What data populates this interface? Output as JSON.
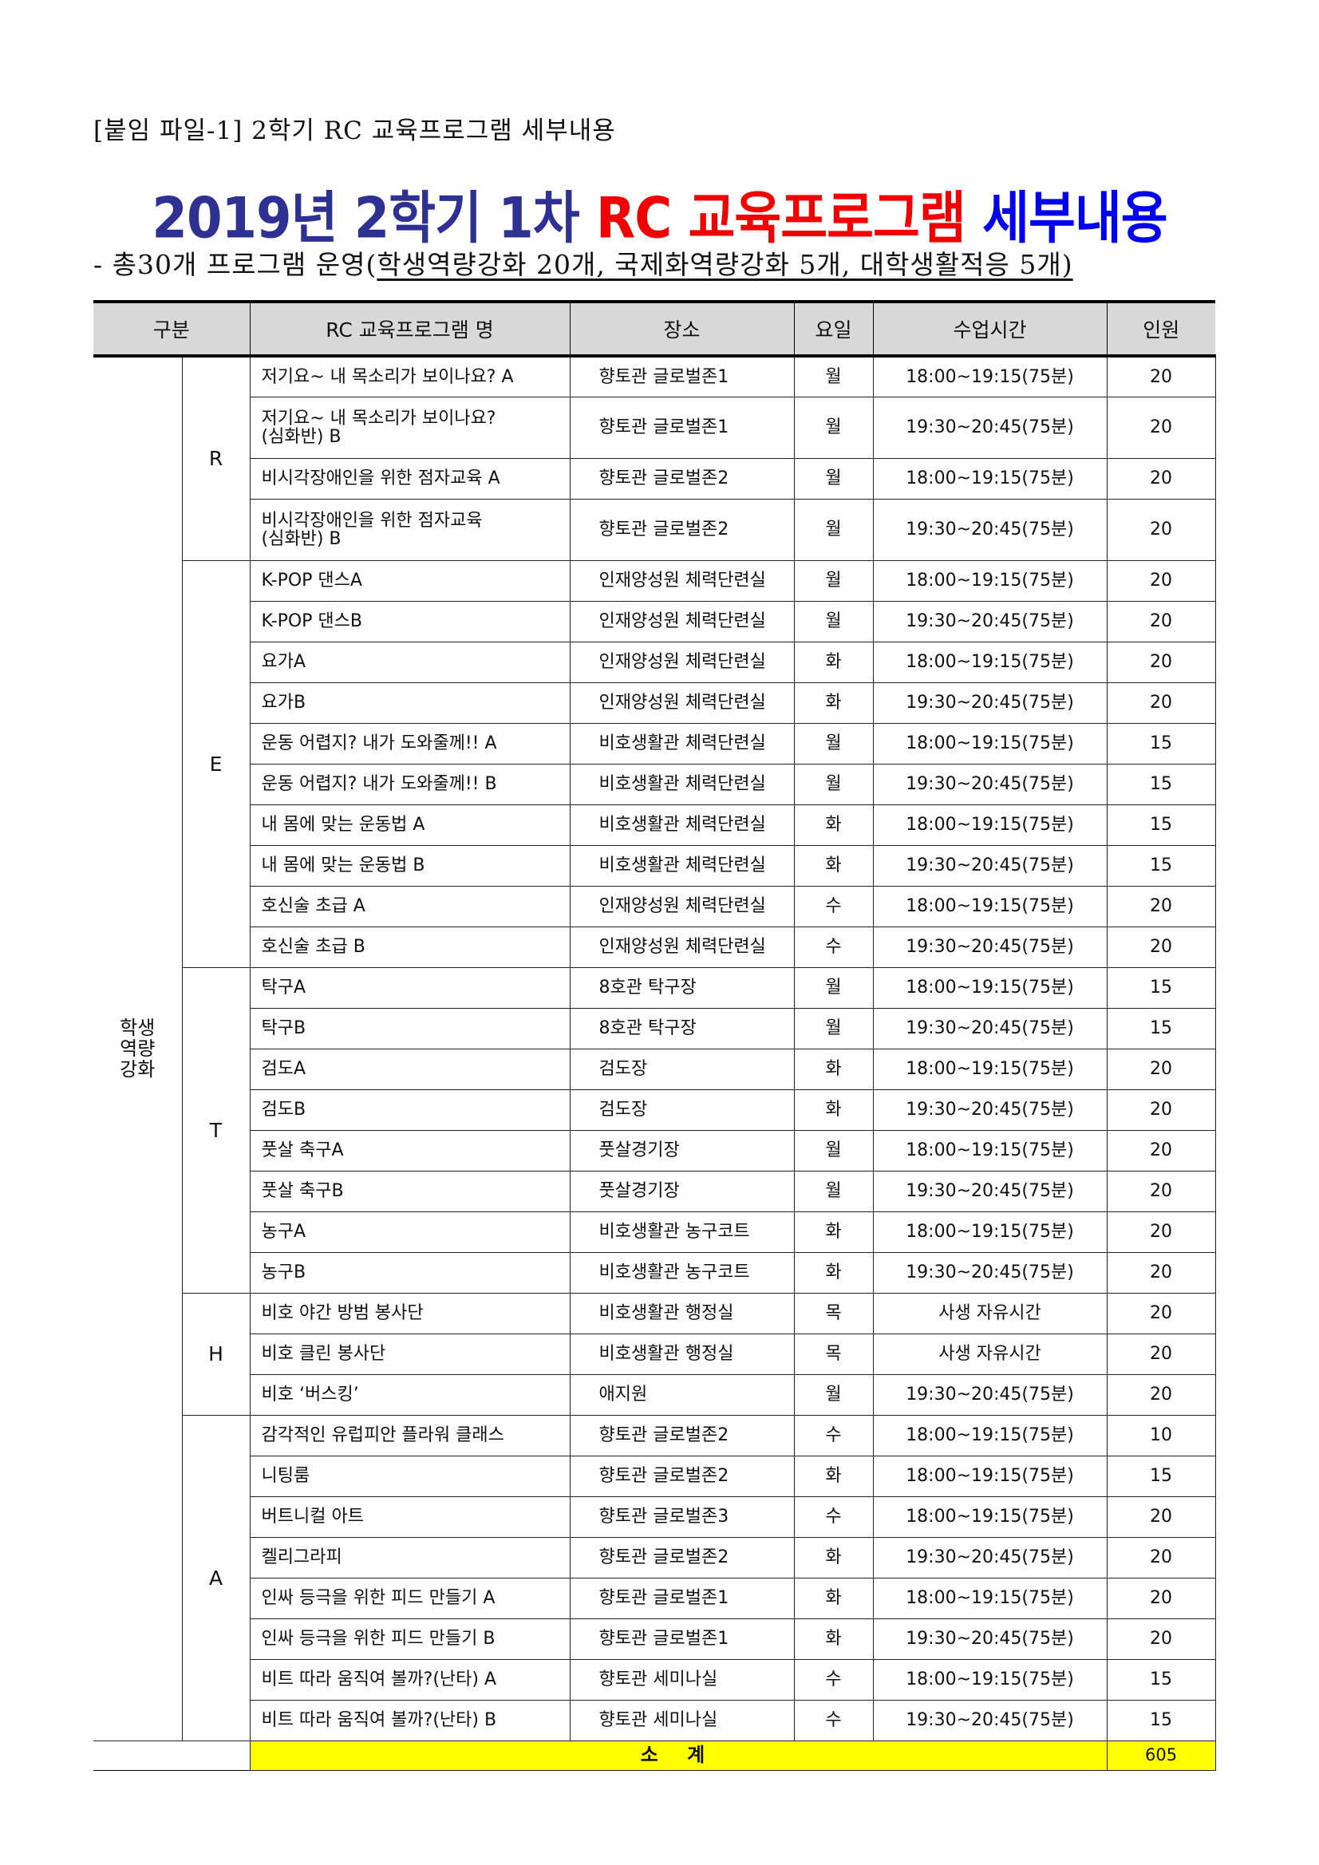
{
  "attachment_label": "[붙임 파일-1] 2학기 RC 교육프로그램 세부내용",
  "title": {
    "part1": "2019년 2학기 1차 ",
    "part2": "RC 교육프로그램 ",
    "part3": "세부내용"
  },
  "subtitle": {
    "prefix": "- 총30개 프로그램 운영(",
    "underlined": "학생역량강화 20개, 국제화역량강화 5개, 대학생활적응 5개)"
  },
  "colors": {
    "title_navy": "#2e3192",
    "title_red": "#f00000",
    "title_blue": "#0000ee",
    "header_bg": "#d9d9d9",
    "subtotal_bg": "#ffff00"
  },
  "table": {
    "headers": [
      "구분",
      "RC 교육프로그램 명",
      "장소",
      "요일",
      "수업시간",
      "인원"
    ],
    "group": "학생역량강화",
    "sections": [
      {
        "category": "R",
        "rows": [
          {
            "name": "저기요~ 내 목소리가 보이나요? A",
            "place": "향토관 글로벌존1",
            "day": "월",
            "time": "18:00~19:15(75분)",
            "count": "20"
          },
          {
            "name": "저기요~ 내 목소리가 보이나요?\n(심화반) B",
            "place": "향토관 글로벌존1",
            "day": "월",
            "time": "19:30~20:45(75분)",
            "count": "20"
          },
          {
            "name": "비시각장애인을 위한 점자교육 A",
            "place": "향토관 글로벌존2",
            "day": "월",
            "time": "18:00~19:15(75분)",
            "count": "20"
          },
          {
            "name": "비시각장애인을 위한 점자교육\n(심화반) B",
            "place": "향토관 글로벌존2",
            "day": "월",
            "time": "19:30~20:45(75분)",
            "count": "20"
          }
        ]
      },
      {
        "category": "E",
        "rows": [
          {
            "name": "K-POP 댄스A",
            "place": "인재양성원 체력단련실",
            "day": "월",
            "time": "18:00~19:15(75분)",
            "count": "20"
          },
          {
            "name": "K-POP 댄스B",
            "place": "인재양성원 체력단련실",
            "day": "월",
            "time": "19:30~20:45(75분)",
            "count": "20"
          },
          {
            "name": "요가A",
            "place": "인재양성원 체력단련실",
            "day": "화",
            "time": "18:00~19:15(75분)",
            "count": "20"
          },
          {
            "name": "요가B",
            "place": "인재양성원 체력단련실",
            "day": "화",
            "time": "19:30~20:45(75분)",
            "count": "20"
          },
          {
            "name": "운동 어렵지? 내가 도와줄께!! A",
            "place": "비호생활관 체력단련실",
            "day": "월",
            "time": "18:00~19:15(75분)",
            "count": "15"
          },
          {
            "name": "운동 어렵지? 내가 도와줄께!! B",
            "place": "비호생활관 체력단련실",
            "day": "월",
            "time": "19:30~20:45(75분)",
            "count": "15"
          },
          {
            "name": "내 몸에 맞는 운동법 A",
            "place": "비호생활관 체력단련실",
            "day": "화",
            "time": "18:00~19:15(75분)",
            "count": "15"
          },
          {
            "name": "내 몸에 맞는 운동법 B",
            "place": "비호생활관 체력단련실",
            "day": "화",
            "time": "19:30~20:45(75분)",
            "count": "15"
          },
          {
            "name": "호신술 초급 A",
            "place": "인재양성원 체력단련실",
            "day": "수",
            "time": "18:00~19:15(75분)",
            "count": "20"
          },
          {
            "name": "호신술 초급 B",
            "place": "인재양성원 체력단련실",
            "day": "수",
            "time": "19:30~20:45(75분)",
            "count": "20"
          }
        ]
      },
      {
        "category": "T",
        "rows": [
          {
            "name": "탁구A",
            "place": "8호관 탁구장",
            "day": "월",
            "time": "18:00~19:15(75분)",
            "count": "15"
          },
          {
            "name": "탁구B",
            "place": "8호관 탁구장",
            "day": "월",
            "time": "19:30~20:45(75분)",
            "count": "15"
          },
          {
            "name": "검도A",
            "place": "검도장",
            "day": "화",
            "time": "18:00~19:15(75분)",
            "count": "20"
          },
          {
            "name": "검도B",
            "place": "검도장",
            "day": "화",
            "time": "19:30~20:45(75분)",
            "count": "20"
          },
          {
            "name": "풋살 축구A",
            "place": "풋살경기장",
            "day": "월",
            "time": "18:00~19:15(75분)",
            "count": "20"
          },
          {
            "name": "풋살 축구B",
            "place": "풋살경기장",
            "day": "월",
            "time": "19:30~20:45(75분)",
            "count": "20"
          },
          {
            "name": "농구A",
            "place": "비호생활관 농구코트",
            "day": "화",
            "time": "18:00~19:15(75분)",
            "count": "20"
          },
          {
            "name": "농구B",
            "place": "비호생활관 농구코트",
            "day": "화",
            "time": "19:30~20:45(75분)",
            "count": "20"
          }
        ]
      },
      {
        "category": "H",
        "rows": [
          {
            "name": "비호 야간 방범 봉사단",
            "place": "비호생활관 행정실",
            "day": "목",
            "time": "사생 자유시간",
            "count": "20"
          },
          {
            "name": "비호 클린 봉사단",
            "place": "비호생활관 행정실",
            "day": "목",
            "time": "사생 자유시간",
            "count": "20"
          },
          {
            "name": "비호 ‘버스킹’",
            "place": "애지원",
            "day": "월",
            "time": "19:30~20:45(75분)",
            "count": "20"
          }
        ]
      },
      {
        "category": "A",
        "rows": [
          {
            "name": "감각적인 유럽피안 플라워 클래스",
            "place": "향토관 글로벌존2",
            "day": "수",
            "time": "18:00~19:15(75분)",
            "count": "10"
          },
          {
            "name": "니팅룸",
            "place": "향토관 글로벌존2",
            "day": "화",
            "time": "18:00~19:15(75분)",
            "count": "15"
          },
          {
            "name": "버트니컬 아트",
            "place": "향토관 글로벌존3",
            "day": "수",
            "time": "18:00~19:15(75분)",
            "count": "20"
          },
          {
            "name": "켈리그라피",
            "place": "향토관 글로벌존2",
            "day": "화",
            "time": "19:30~20:45(75분)",
            "count": "20"
          },
          {
            "name": "인싸 등극을 위한 피드 만들기 A",
            "place": "향토관 글로벌존1",
            "day": "화",
            "time": "18:00~19:15(75분)",
            "count": "20"
          },
          {
            "name": "인싸 등극을 위한 피드 만들기 B",
            "place": "향토관 글로벌존1",
            "day": "화",
            "time": "19:30~20:45(75분)",
            "count": "20"
          },
          {
            "name": "비트 따라 움직여 볼까?(난타) A",
            "place": "향토관 세미나실",
            "day": "수",
            "time": "18:00~19:15(75분)",
            "count": "15"
          },
          {
            "name": "비트 따라 움직여 볼까?(난타) B",
            "place": "향토관 세미나실",
            "day": "수",
            "time": "19:30~20:45(75분)",
            "count": "15"
          }
        ]
      }
    ],
    "subtotal_label": "소 계",
    "subtotal_value": "605"
  }
}
